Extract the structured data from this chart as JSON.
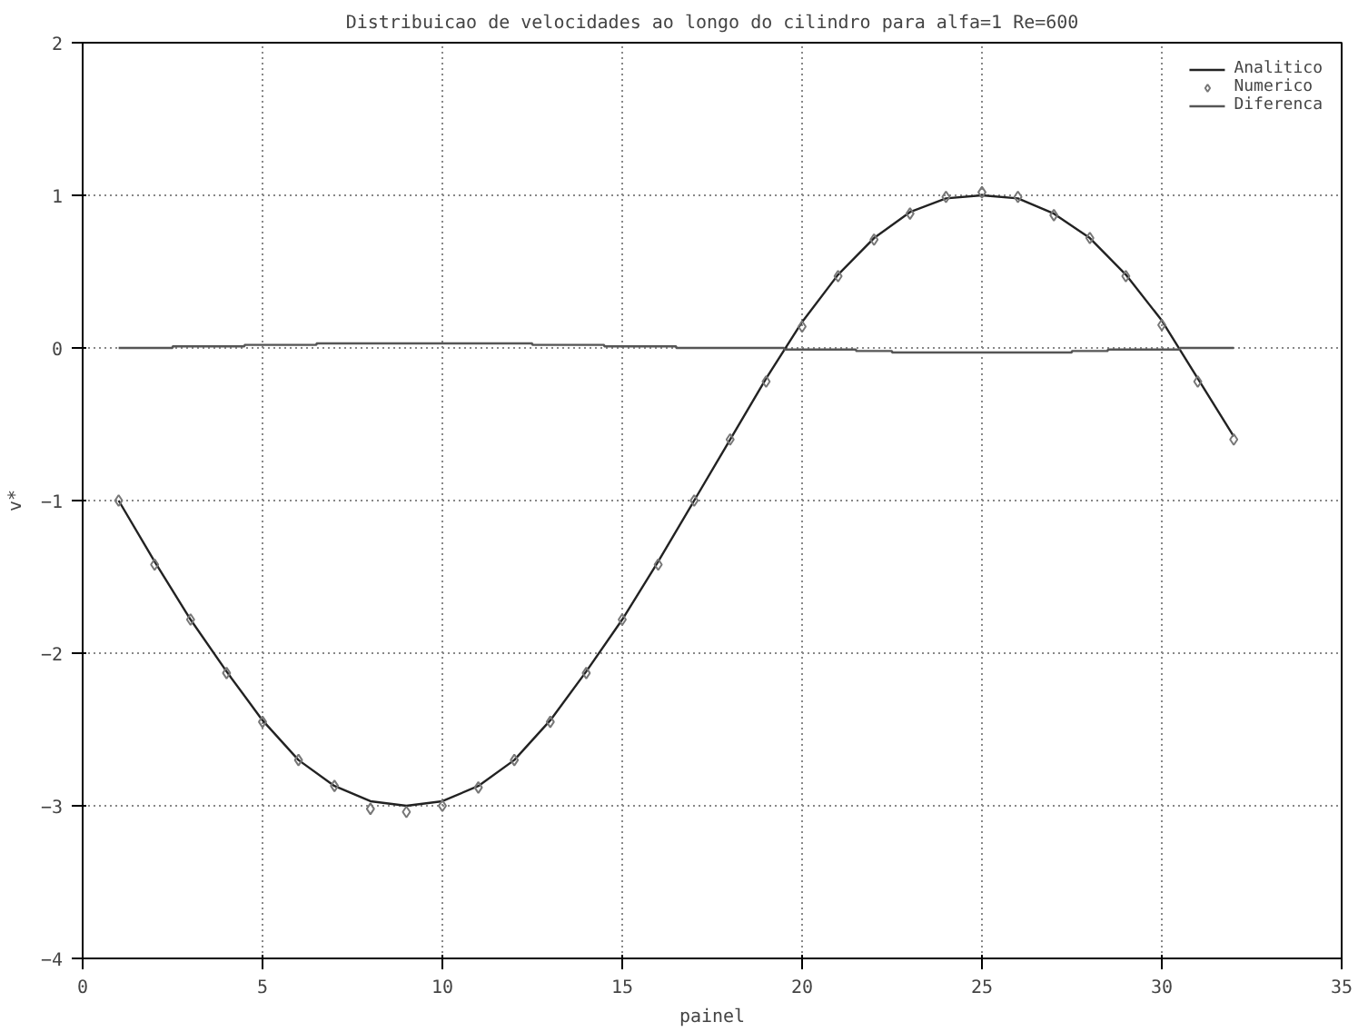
{
  "chart_data": {
    "type": "line",
    "title": "Distribuicao de velocidades ao longo do cilindro para alfa=1 Re=600",
    "xlabel": "painel",
    "ylabel": "v*",
    "xlim": [
      0,
      35
    ],
    "xticks": [
      0,
      5,
      10,
      15,
      20,
      25,
      30,
      35
    ],
    "ylim": [
      -4,
      2
    ],
    "yticks": [
      -4,
      -3,
      -2,
      -1,
      0,
      1,
      2
    ],
    "grid": true,
    "legend": "top right",
    "series": [
      {
        "name": "Analitico",
        "color": "#222222",
        "line_style": "solid",
        "x": [
          1,
          2,
          3,
          4,
          5,
          6,
          7,
          8,
          9,
          10,
          11,
          12,
          13,
          14,
          15,
          16,
          17,
          18,
          19,
          20,
          21,
          22,
          23,
          24,
          25,
          26,
          27,
          28,
          29,
          30,
          31,
          32
        ],
        "values": [
          -1.0,
          -1.4,
          -1.78,
          -2.12,
          -2.44,
          -2.7,
          -2.87,
          -2.97,
          -3.0,
          -2.97,
          -2.87,
          -2.7,
          -2.44,
          -2.12,
          -1.78,
          -1.4,
          -1.0,
          -0.6,
          -0.2,
          0.17,
          0.48,
          0.72,
          0.89,
          0.98,
          1.0,
          0.98,
          0.88,
          0.72,
          0.48,
          0.18,
          -0.2,
          -0.58
        ]
      },
      {
        "name": "Numerico",
        "type": "scatter",
        "color": "#777777",
        "marker": "diamond",
        "x": [
          1,
          2,
          3,
          4,
          5,
          6,
          7,
          8,
          9,
          10,
          11,
          12,
          13,
          14,
          15,
          16,
          17,
          18,
          19,
          20,
          21,
          22,
          23,
          24,
          25,
          26,
          27,
          28,
          29,
          30,
          31,
          32
        ],
        "values": [
          -1.0,
          -1.42,
          -1.78,
          -2.13,
          -2.45,
          -2.7,
          -2.87,
          -3.02,
          -3.04,
          -3.0,
          -2.88,
          -2.7,
          -2.45,
          -2.13,
          -1.78,
          -1.42,
          -1.0,
          -0.6,
          -0.22,
          0.14,
          0.47,
          0.71,
          0.88,
          0.99,
          1.02,
          0.99,
          0.87,
          0.72,
          0.47,
          0.15,
          -0.22,
          -0.6
        ]
      },
      {
        "name": "Diferenca",
        "type": "step",
        "color": "#555555",
        "line_style": "solid",
        "x": [
          1,
          2,
          3,
          4,
          5,
          6,
          7,
          8,
          9,
          10,
          11,
          12,
          13,
          14,
          15,
          16,
          17,
          18,
          19,
          20,
          21,
          22,
          23,
          24,
          25,
          26,
          27,
          28,
          29,
          30,
          31,
          32
        ],
        "values": [
          0.0,
          0.0,
          0.01,
          0.01,
          0.02,
          0.02,
          0.03,
          0.03,
          0.03,
          0.03,
          0.03,
          0.03,
          0.02,
          0.02,
          0.01,
          0.01,
          0.0,
          0.0,
          0.0,
          -0.01,
          -0.01,
          -0.02,
          -0.03,
          -0.03,
          -0.03,
          -0.03,
          -0.03,
          -0.02,
          -0.01,
          -0.01,
          0.0,
          0.0
        ]
      }
    ]
  }
}
